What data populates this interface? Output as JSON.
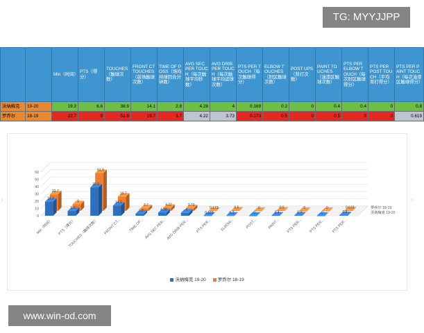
{
  "watermark_top": "TG: MYYJJPP",
  "watermark_bottom": "www.win-od.com",
  "table": {
    "headers": [
      "",
      "",
      "Min（时间）",
      "PTS（得分）",
      "TOUCHES（触球次数）",
      "FRONT CT TOUCHES（前场触球次数）",
      "TIME OF POSS（场均持球回合分钟数）",
      "AVG SEC PER TOUCH（每次触球平均秒数）",
      "AVG DRIB PER TOUCH（每次触球平均运球次数）",
      "PTS PER TOUCH（每次触球得分）",
      "ELBOW TOUCHES（肘区触球次数）",
      "POST UPS（背打次数）",
      "PAINT TOUCHES（油漆区触球次数）",
      "PTS PER ELBOW TOUCH（每次肘区触球得分）",
      "PTS PER POST TOUCH（平均背打得分）",
      "PTS PER PAINT TOUCH（每次油漆区触球得分）"
    ],
    "rows": [
      {
        "name": "沃纳梅克",
        "season": "19-20",
        "values": [
          "19.3",
          "6.6",
          "38.9",
          "14.1",
          "2.8",
          "4.28",
          "4",
          "0.169",
          "0.2",
          "0",
          "0.4",
          "0.4",
          "0",
          "0.8"
        ]
      },
      {
        "name": "罗乔尔",
        "season": "18-19",
        "values": [
          "22.7",
          "9",
          "51.9",
          "19.7",
          "3.7",
          "4.22",
          "3.73",
          "0.173",
          "0.5",
          "0",
          "0.5",
          "0",
          "0",
          "0.619"
        ]
      }
    ]
  },
  "chart_data": {
    "type": "bar",
    "categories": [
      "Min（时间）",
      "PTS（得分）",
      "TOUCHES（触球次数）",
      "FRONT CT...",
      "TIME OF...",
      "AVG SEC PER...",
      "AVG DRIB PER...",
      "PTS PER...",
      "ELBOW...",
      "POST...",
      "PAINT...",
      "PTS PER...",
      "PTS PER...",
      "PTS PER..."
    ],
    "series": [
      {
        "name": "沃纳梅克 19-20",
        "color": "#2f6fc0",
        "values": [
          19.3,
          6.6,
          38.9,
          14.1,
          2.8,
          4.28,
          4,
          0.169,
          0.2,
          0,
          0.4,
          0.4,
          0,
          0.8
        ]
      },
      {
        "name": "罗乔尔 18-19",
        "color": "#ed7d31",
        "values": [
          22.7,
          9,
          51.9,
          19.7,
          3.7,
          4.22,
          3.73,
          0.173,
          0.5,
          0,
          0.5,
          0,
          0,
          0.619
        ]
      }
    ],
    "data_labels": {
      "沃纳梅克 19-20": [
        "19.3",
        "6.6",
        "38.9",
        "14.1",
        "2.8",
        "4.28",
        "4",
        "0.169",
        "0.2",
        "0",
        "0.4",
        "0.4",
        "0",
        "0.8"
      ],
      "罗乔尔 18-19": [
        "22.7",
        "9",
        "51.9",
        "19.7",
        "3.7",
        "4.22",
        "3.73",
        "0.173",
        "0.5",
        "0",
        "0.5",
        "0",
        "0",
        "0.619"
      ]
    },
    "yticks": [
      0,
      10,
      20,
      30,
      40,
      50,
      60
    ],
    "ylim": [
      0,
      60
    ],
    "depth_labels": [
      "罗乔尔 18-19",
      "沃纳梅克 19-20"
    ],
    "grid": true,
    "legend_position": "bottom",
    "style": "3d-clustered"
  }
}
